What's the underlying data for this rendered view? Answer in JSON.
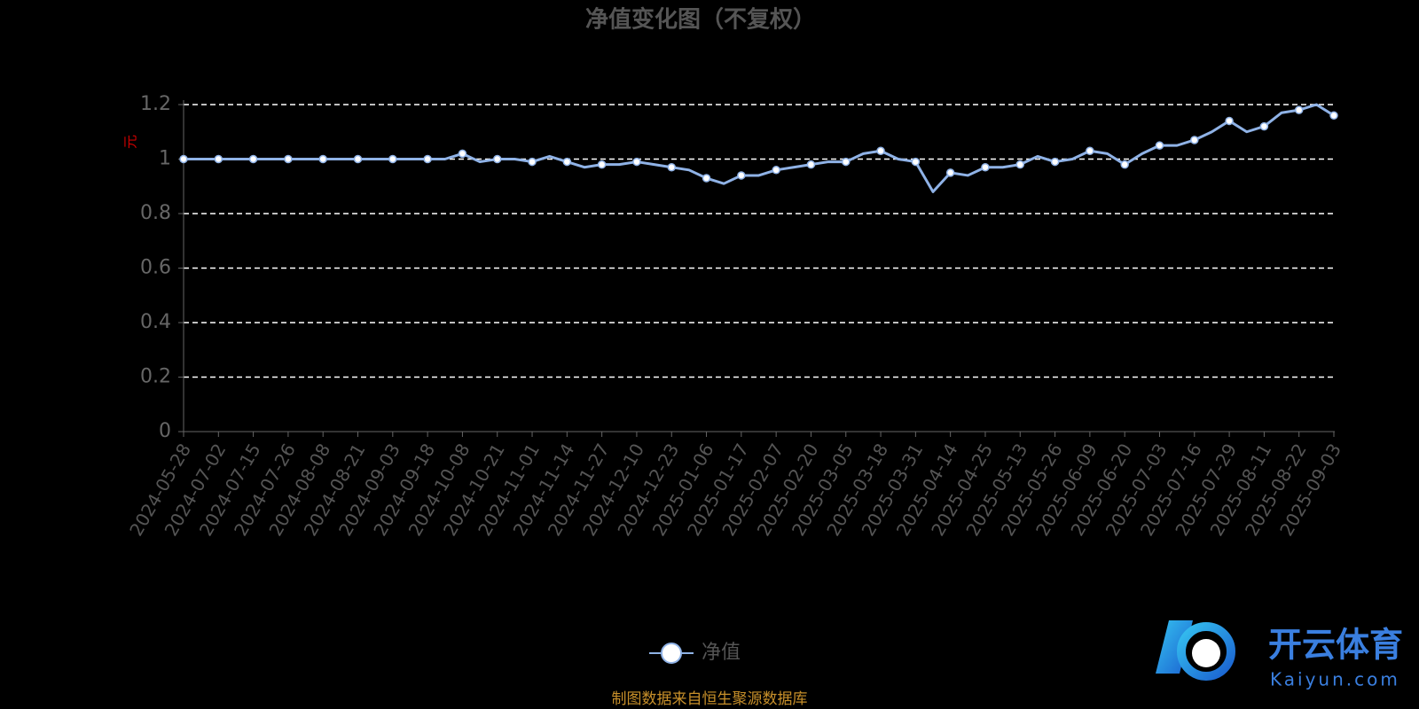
{
  "chart_data": {
    "type": "line",
    "title": "净值变化图（不复权）",
    "y_label": "元",
    "source": "制图数据来自恒生聚源数据库",
    "categories": [
      "2024-05-28",
      null,
      "2024-07-02",
      null,
      "2024-07-15",
      null,
      "2024-07-26",
      null,
      "2024-08-08",
      null,
      "2024-08-21",
      null,
      "2024-09-03",
      null,
      "2024-09-18",
      null,
      "2024-10-08",
      null,
      "2024-10-21",
      null,
      "2024-11-01",
      null,
      "2024-11-14",
      null,
      "2024-11-27",
      null,
      "2024-12-10",
      null,
      "2024-12-23",
      null,
      "2025-01-06",
      null,
      "2025-01-17",
      null,
      "2025-02-07",
      null,
      "2025-02-20",
      null,
      "2025-03-05",
      null,
      "2025-03-18",
      null,
      "2025-03-31",
      null,
      "2025-04-14",
      null,
      "2025-04-25",
      null,
      "2025-05-13",
      null,
      "2025-05-26",
      null,
      "2025-06-09",
      null,
      "2025-06-20",
      null,
      "2025-07-03",
      null,
      "2025-07-16",
      null,
      "2025-07-29",
      null,
      "2025-08-11",
      null,
      "2025-08-22",
      null,
      "2025-09-03"
    ],
    "series": [
      {
        "name": "净值",
        "color": "#8fb2e6",
        "values": [
          1.0,
          1.0,
          1.0,
          1.0,
          1.0,
          1.0,
          1.0,
          1.0,
          1.0,
          1.0,
          1.0,
          1.0,
          1.0,
          1.0,
          1.0,
          1.0,
          1.02,
          0.99,
          1.0,
          1.0,
          0.99,
          1.01,
          0.99,
          0.97,
          0.98,
          0.98,
          0.99,
          0.98,
          0.97,
          0.96,
          0.93,
          0.91,
          0.94,
          0.94,
          0.96,
          0.97,
          0.98,
          0.99,
          0.99,
          1.02,
          1.03,
          1.0,
          0.99,
          0.88,
          0.95,
          0.94,
          0.97,
          0.97,
          0.98,
          1.01,
          0.99,
          1.0,
          1.03,
          1.02,
          0.98,
          1.02,
          1.05,
          1.05,
          1.07,
          1.1,
          1.14,
          1.1,
          1.12,
          1.17,
          1.18,
          1.2,
          1.16
        ]
      }
    ],
    "ylim": [
      0,
      1.2
    ],
    "yticks": [
      0,
      0.2,
      0.4,
      0.6,
      0.8,
      1,
      1.2
    ],
    "grid": true
  },
  "watermark": {
    "name": "开云体育",
    "url": "Kaiyun.com"
  }
}
